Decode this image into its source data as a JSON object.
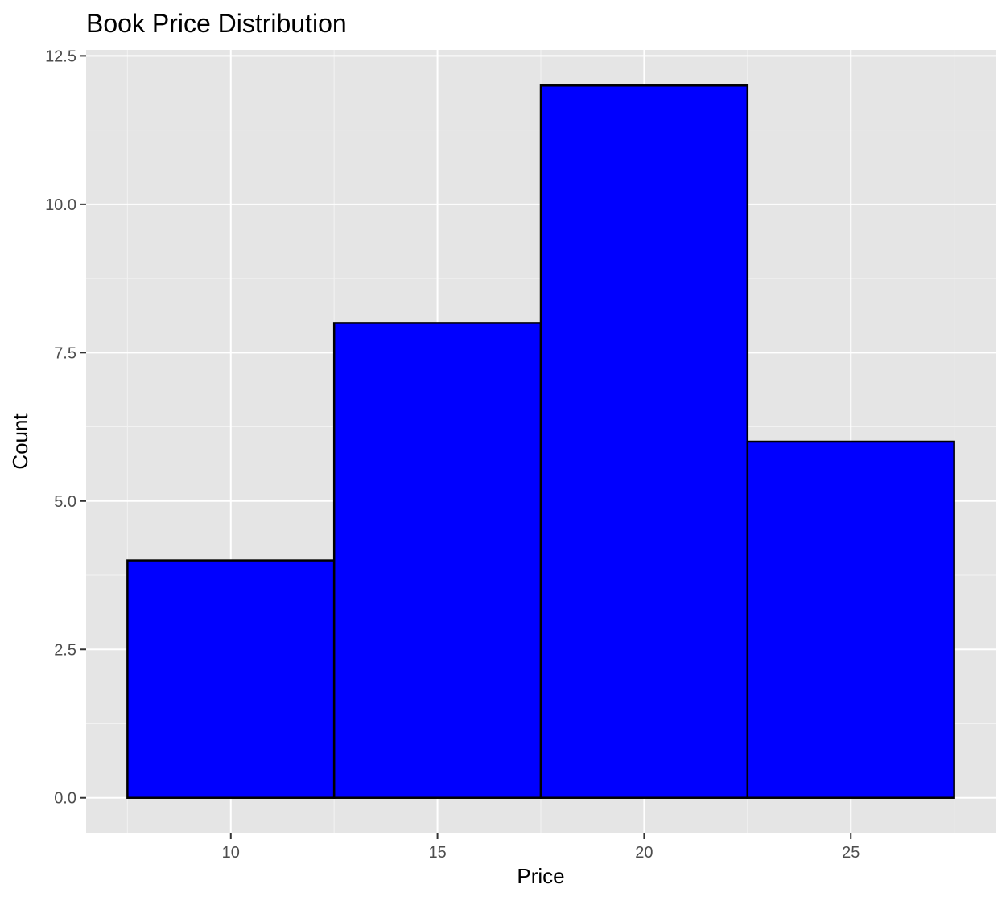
{
  "chart_data": {
    "type": "bar",
    "title": "Book Price Distribution",
    "xlabel": "Price",
    "ylabel": "Count",
    "bins": [
      {
        "from": 7.5,
        "to": 12.5,
        "count": 4
      },
      {
        "from": 12.5,
        "to": 17.5,
        "count": 8
      },
      {
        "from": 17.5,
        "to": 22.5,
        "count": 12
      },
      {
        "from": 22.5,
        "to": 27.5,
        "count": 6
      }
    ],
    "xlim": [
      6.5,
      28.5
    ],
    "ylim": [
      -0.6,
      12.6
    ],
    "xticks": [
      10,
      15,
      20,
      25
    ],
    "xtick_labels": [
      "10",
      "15",
      "20",
      "25"
    ],
    "yticks": [
      0,
      2.5,
      5,
      7.5,
      10,
      12.5
    ],
    "ytick_labels": [
      "0.0",
      "2.5",
      "5.0",
      "7.5",
      "10.0",
      "12.5"
    ],
    "grid": true,
    "colors": {
      "panel_background": "#e5e5e5",
      "grid_major": "#ffffff",
      "grid_minor": "#f2f2f2",
      "bar_fill": "#0000ff",
      "bar_stroke": "#000000",
      "tick_color": "#333333"
    }
  }
}
